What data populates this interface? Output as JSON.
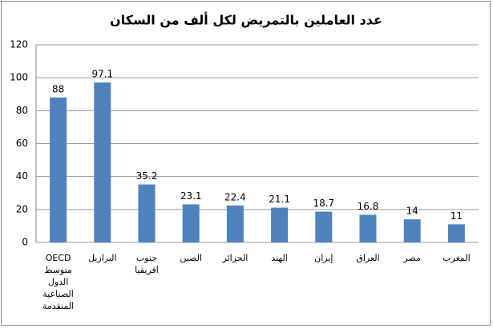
{
  "chart_data": {
    "type": "bar",
    "title": "عدد العاملين بالتمريض لكل ألف من السكان",
    "categories": [
      "OECD متوسط الدول الصناعية المتقدمة",
      "البرازيل",
      "جنوب افريقيا",
      "الصين",
      "الجزائر",
      "الهند",
      "إيران",
      "العراق",
      "مصر",
      "المغرب"
    ],
    "values": [
      88,
      97.1,
      35.2,
      23.1,
      22.4,
      21.1,
      18.7,
      16.8,
      14,
      11
    ],
    "color": "#4f81bd",
    "ylim": [
      0,
      120
    ],
    "yticks": [
      0,
      20,
      40,
      60,
      80,
      100,
      120
    ],
    "grid": true
  }
}
